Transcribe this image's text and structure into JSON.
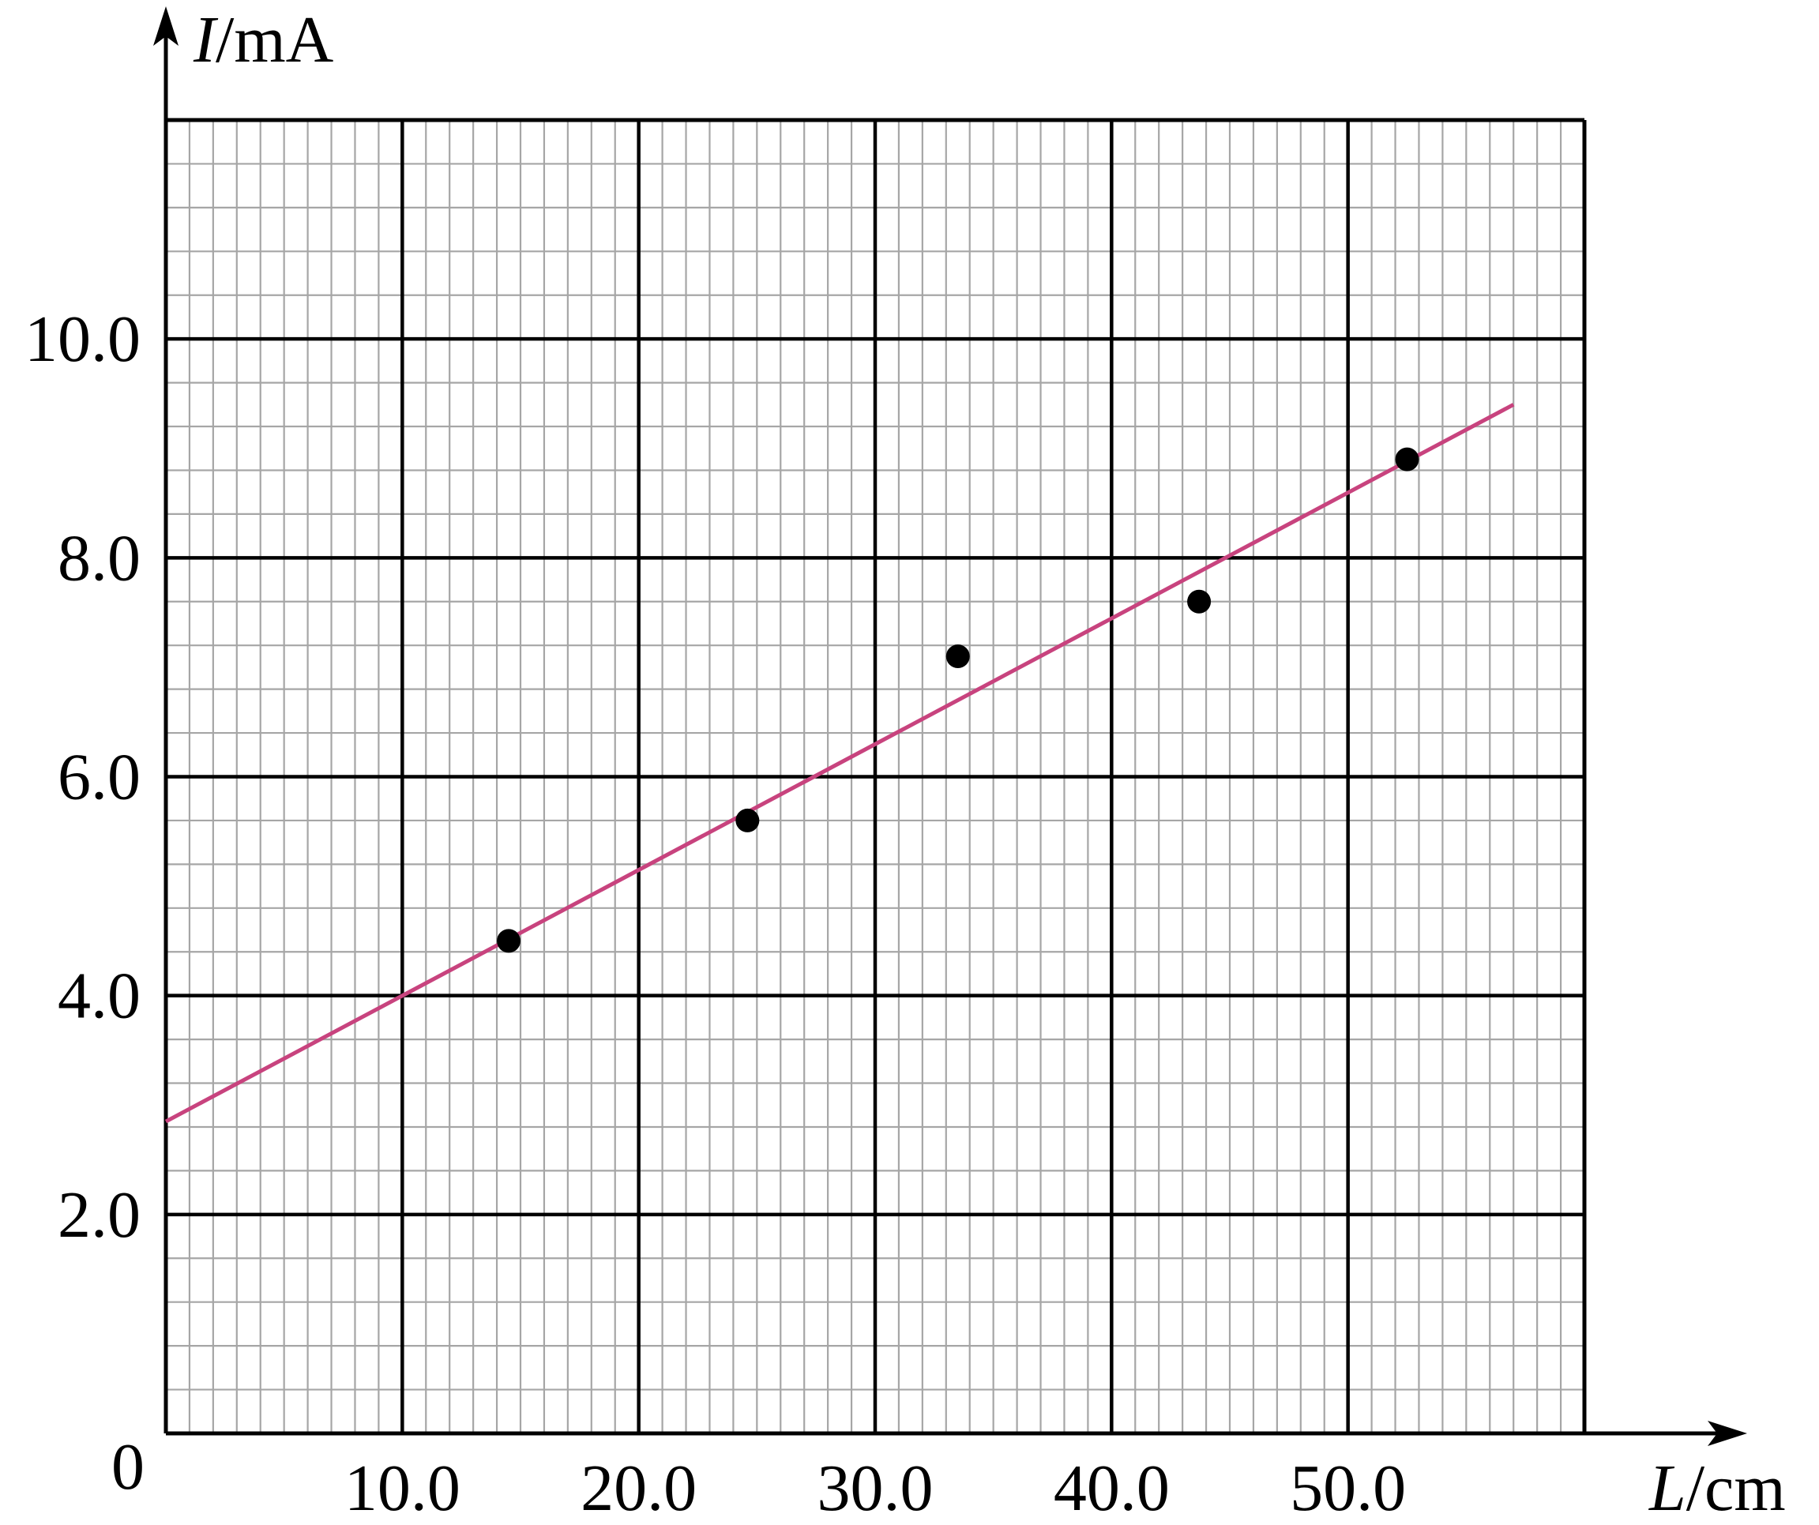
{
  "chart_data": {
    "type": "scatter",
    "x_label": {
      "var": "L",
      "unit": "/cm"
    },
    "y_label": {
      "var": "I",
      "unit": "/mA"
    },
    "origin_label": "0",
    "x_ticks": [
      {
        "value": 10,
        "label": "10.0"
      },
      {
        "value": 20,
        "label": "20.0"
      },
      {
        "value": 30,
        "label": "30.0"
      },
      {
        "value": 40,
        "label": "40.0"
      },
      {
        "value": 50,
        "label": "50.0"
      }
    ],
    "y_ticks": [
      {
        "value": 2,
        "label": "2.0"
      },
      {
        "value": 4,
        "label": "4.0"
      },
      {
        "value": 6,
        "label": "6.0"
      },
      {
        "value": 8,
        "label": "8.0"
      },
      {
        "value": 10,
        "label": "10.0"
      }
    ],
    "xlim": [
      0,
      60
    ],
    "ylim": [
      0,
      12
    ],
    "grid": {
      "major_x": 10,
      "major_y": 2,
      "minor_x": 1,
      "minor_y": 0.4
    },
    "points": [
      {
        "x": 14.5,
        "y": 4.5
      },
      {
        "x": 24.6,
        "y": 5.6
      },
      {
        "x": 33.5,
        "y": 7.1
      },
      {
        "x": 43.7,
        "y": 7.6
      },
      {
        "x": 52.5,
        "y": 8.9
      }
    ],
    "fit_line": {
      "x_start": 0,
      "y_start": 2.85,
      "x_end": 57,
      "y_end": 9.4
    },
    "colors": {
      "fit_line": "#c8437e",
      "minor_grid": "#a6a6a6",
      "major_grid": "#000000",
      "points": "#000000"
    }
  }
}
